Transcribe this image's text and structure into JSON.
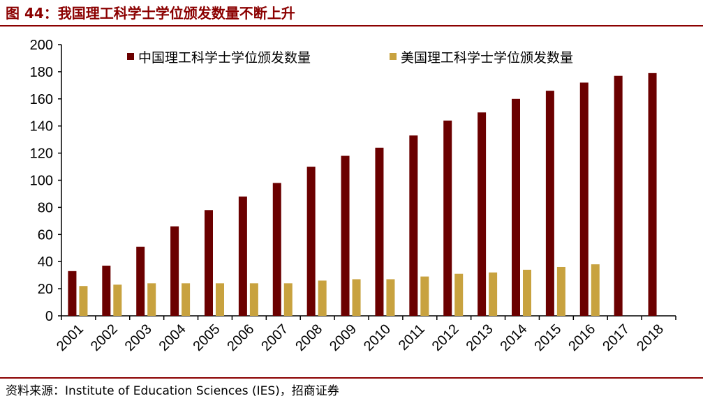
{
  "figure": {
    "title": "图 44：我国理工科学士学位颁发数量不断上升",
    "source": "资料来源：Institute of Education Sciences (IES)，招商证券"
  },
  "colors": {
    "china": "#6b0000",
    "us": "#c8a23f",
    "accent": "#8b0000"
  },
  "chart_data": {
    "type": "bar",
    "title": "",
    "xlabel": "",
    "ylabel": "",
    "ylim": [
      0,
      200
    ],
    "yticks": [
      0,
      20,
      40,
      60,
      80,
      100,
      120,
      140,
      160,
      180,
      200
    ],
    "grid": false,
    "legend_position": "top",
    "categories": [
      "2001",
      "2002",
      "2003",
      "2004",
      "2005",
      "2006",
      "2007",
      "2008",
      "2009",
      "2010",
      "2011",
      "2012",
      "2013",
      "2014",
      "2015",
      "2016",
      "2017",
      "2018"
    ],
    "series": [
      {
        "name": "中国理工科学士学位颁发数量",
        "color": "#6b0000",
        "values": [
          33,
          37,
          51,
          66,
          78,
          88,
          98,
          110,
          118,
          124,
          133,
          144,
          150,
          160,
          166,
          172,
          177,
          179
        ]
      },
      {
        "name": "美国理工科学士学位颁发数量",
        "color": "#c8a23f",
        "values": [
          22,
          23,
          24,
          24,
          24,
          24,
          24,
          26,
          27,
          27,
          29,
          31,
          32,
          34,
          36,
          38,
          null,
          null
        ]
      }
    ]
  }
}
